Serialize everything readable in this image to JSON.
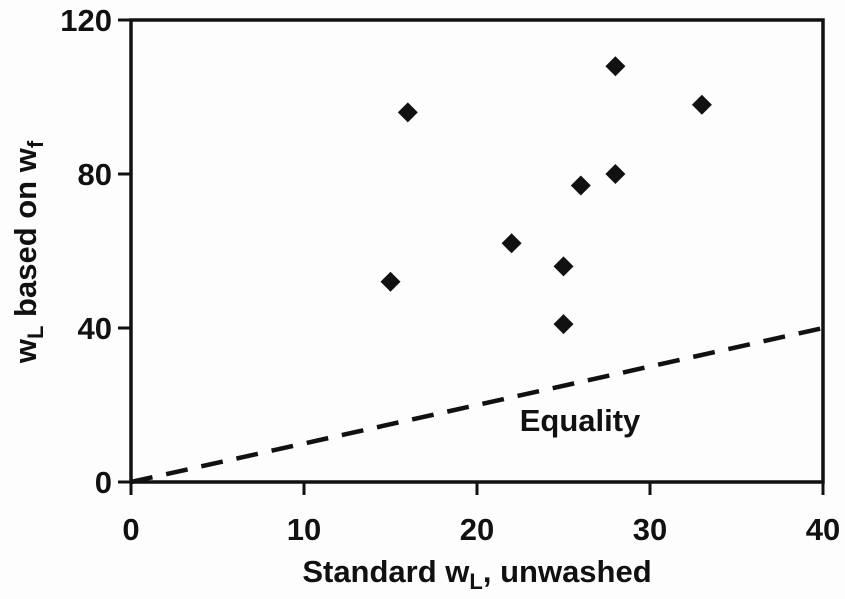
{
  "chart_data": {
    "type": "scatter",
    "title": "",
    "xlabel_parts": [
      {
        "text": "Standard w"
      },
      {
        "text": "L",
        "sub": true
      },
      {
        "text": ", unwashed"
      }
    ],
    "ylabel_parts": [
      {
        "text": "w"
      },
      {
        "text": "L",
        "sub": true
      },
      {
        "text": " based on w"
      },
      {
        "text": "f",
        "sub": true
      }
    ],
    "xlabel_plain": "Standard wL, unwashed",
    "ylabel_plain": "wL based on wf",
    "xlim": [
      0,
      40
    ],
    "ylim": [
      0,
      120
    ],
    "x_ticks": [
      0,
      10,
      20,
      30,
      40
    ],
    "y_ticks": [
      0,
      40,
      80,
      120
    ],
    "grid": false,
    "series": [
      {
        "name": "wL based on wf vs standard wL",
        "marker": "diamond",
        "color": "#111111",
        "points": [
          [
            15,
            52
          ],
          [
            16,
            96
          ],
          [
            22,
            62
          ],
          [
            25,
            41
          ],
          [
            25,
            56
          ],
          [
            26,
            77
          ],
          [
            28,
            80
          ],
          [
            28,
            108
          ],
          [
            33,
            98
          ]
        ]
      }
    ],
    "equality_line": {
      "label": "Equality",
      "style": "dashed",
      "color": "#111111",
      "x": [
        0,
        40
      ],
      "y": [
        0,
        40
      ]
    },
    "annotation": {
      "text": "Equality",
      "at_data_coords": [
        26,
        18
      ]
    },
    "colors": {
      "foreground": "#111111",
      "background": "#fdfdfd"
    }
  }
}
